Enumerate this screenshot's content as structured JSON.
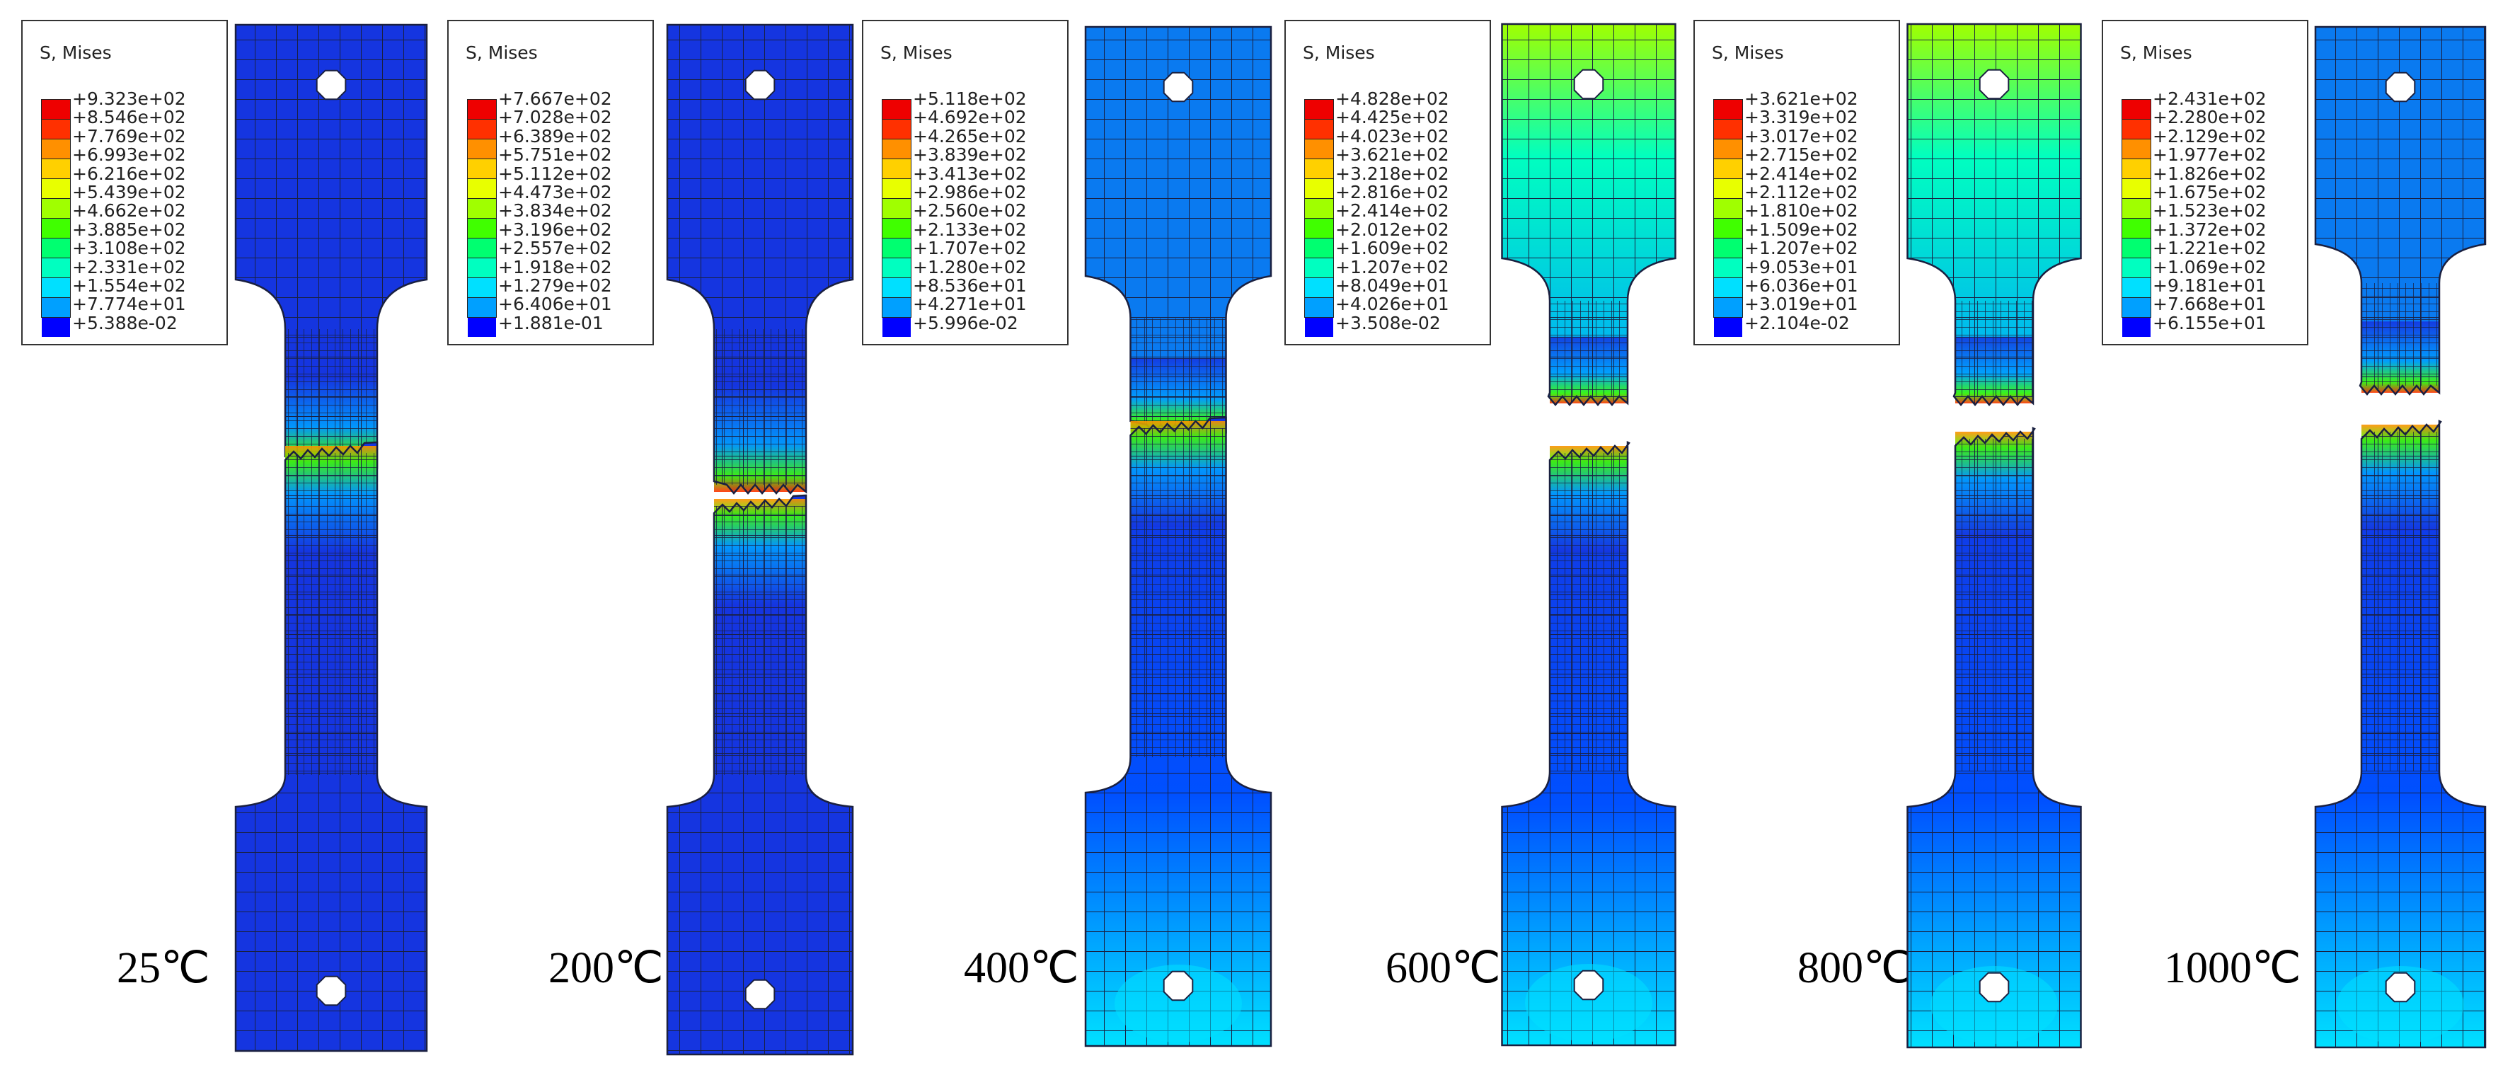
{
  "colors": {
    "scale": [
      "#0000ff",
      "#0050ff",
      "#00a0ff",
      "#00e0ff",
      "#00ffc0",
      "#00ff70",
      "#40ff00",
      "#a0ff00",
      "#e8ff00",
      "#ffd000",
      "#ff9000",
      "#ff3000",
      "#ee0000"
    ],
    "mesh_line": "#1a2040",
    "body_base": "#1535e0"
  },
  "panels": [
    {
      "temperature": "25℃",
      "legend_title": "S, Mises",
      "legend_values": [
        "+9.323e+02",
        "+8.546e+02",
        "+7.769e+02",
        "+6.993e+02",
        "+6.216e+02",
        "+5.439e+02",
        "+4.662e+02",
        "+3.885e+02",
        "+3.108e+02",
        "+2.331e+02",
        "+1.554e+02",
        "+7.774e+01",
        "+5.388e-02"
      ]
    },
    {
      "temperature": "200℃",
      "legend_title": "S, Mises",
      "legend_values": [
        "+7.667e+02",
        "+7.028e+02",
        "+6.389e+02",
        "+5.751e+02",
        "+5.112e+02",
        "+4.473e+02",
        "+3.834e+02",
        "+3.196e+02",
        "+2.557e+02",
        "+1.918e+02",
        "+1.279e+02",
        "+6.406e+01",
        "+1.881e-01"
      ]
    },
    {
      "temperature": "400℃",
      "legend_title": "S, Mises",
      "legend_values": [
        "+5.118e+02",
        "+4.692e+02",
        "+4.265e+02",
        "+3.839e+02",
        "+3.413e+02",
        "+2.986e+02",
        "+2.560e+02",
        "+2.133e+02",
        "+1.707e+02",
        "+1.280e+02",
        "+8.536e+01",
        "+4.271e+01",
        "+5.996e-02"
      ]
    },
    {
      "temperature": "600℃",
      "legend_title": "S, Mises",
      "legend_values": [
        "+4.828e+02",
        "+4.425e+02",
        "+4.023e+02",
        "+3.621e+02",
        "+3.218e+02",
        "+2.816e+02",
        "+2.414e+02",
        "+2.012e+02",
        "+1.609e+02",
        "+1.207e+02",
        "+8.049e+01",
        "+4.026e+01",
        "+3.508e-02"
      ]
    },
    {
      "temperature": "800℃",
      "legend_title": "S, Mises",
      "legend_values": [
        "+3.621e+02",
        "+3.319e+02",
        "+3.017e+02",
        "+2.715e+02",
        "+2.414e+02",
        "+2.112e+02",
        "+1.810e+02",
        "+1.509e+02",
        "+1.207e+02",
        "+9.053e+01",
        "+6.036e+01",
        "+3.019e+01",
        "+2.104e-02"
      ]
    },
    {
      "temperature": "1000℃",
      "legend_title": "S, Mises",
      "legend_values": [
        "+2.431e+02",
        "+2.280e+02",
        "+2.129e+02",
        "+1.977e+02",
        "+1.826e+02",
        "+1.675e+02",
        "+1.523e+02",
        "+1.372e+02",
        "+1.221e+02",
        "+1.069e+02",
        "+9.181e+01",
        "+7.668e+01",
        "+6.155e+01"
      ]
    }
  ]
}
